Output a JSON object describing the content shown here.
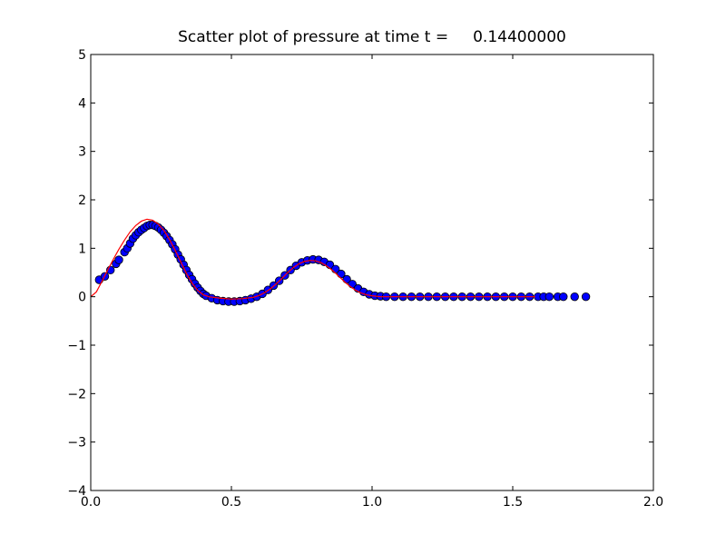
{
  "chart_data": {
    "type": "scatter",
    "title": "Scatter plot of pressure at time t =     0.14400000",
    "xlabel": "",
    "ylabel": "",
    "xlim": [
      0.0,
      2.0
    ],
    "ylim": [
      -4,
      5
    ],
    "x_ticks": [
      "0.0",
      "0.5",
      "1.0",
      "1.5",
      "2.0"
    ],
    "y_ticks": [
      "−4",
      "−3",
      "−2",
      "−1",
      "0",
      "1",
      "2",
      "3",
      "4",
      "5"
    ],
    "x_tick_values": [
      0.0,
      0.5,
      1.0,
      1.5,
      2.0
    ],
    "y_tick_values": [
      -4,
      -3,
      -2,
      -1,
      0,
      1,
      2,
      3,
      4,
      5
    ],
    "grid": false,
    "series": [
      {
        "kind": "scatter",
        "color": "#0000ff",
        "edgecolor": "#000000",
        "points": [
          [
            0.03,
            0.35
          ],
          [
            0.05,
            0.42
          ],
          [
            0.07,
            0.55
          ],
          [
            0.09,
            0.68
          ],
          [
            0.1,
            0.76
          ],
          [
            0.12,
            0.92
          ],
          [
            0.13,
            1.0
          ],
          [
            0.14,
            1.1
          ],
          [
            0.15,
            1.2
          ],
          [
            0.16,
            1.27
          ],
          [
            0.17,
            1.33
          ],
          [
            0.18,
            1.38
          ],
          [
            0.19,
            1.42
          ],
          [
            0.2,
            1.46
          ],
          [
            0.21,
            1.48
          ],
          [
            0.22,
            1.48
          ],
          [
            0.23,
            1.46
          ],
          [
            0.24,
            1.43
          ],
          [
            0.25,
            1.38
          ],
          [
            0.26,
            1.32
          ],
          [
            0.27,
            1.25
          ],
          [
            0.28,
            1.17
          ],
          [
            0.29,
            1.08
          ],
          [
            0.3,
            0.98
          ],
          [
            0.31,
            0.87
          ],
          [
            0.32,
            0.77
          ],
          [
            0.33,
            0.66
          ],
          [
            0.34,
            0.55
          ],
          [
            0.35,
            0.45
          ],
          [
            0.36,
            0.36
          ],
          [
            0.37,
            0.27
          ],
          [
            0.38,
            0.19
          ],
          [
            0.39,
            0.12
          ],
          [
            0.4,
            0.06
          ],
          [
            0.41,
            0.02
          ],
          [
            0.43,
            -0.03
          ],
          [
            0.45,
            -0.07
          ],
          [
            0.47,
            -0.09
          ],
          [
            0.49,
            -0.1
          ],
          [
            0.51,
            -0.1
          ],
          [
            0.53,
            -0.09
          ],
          [
            0.55,
            -0.07
          ],
          [
            0.57,
            -0.04
          ],
          [
            0.59,
            0.0
          ],
          [
            0.61,
            0.06
          ],
          [
            0.63,
            0.14
          ],
          [
            0.65,
            0.23
          ],
          [
            0.67,
            0.33
          ],
          [
            0.69,
            0.44
          ],
          [
            0.71,
            0.55
          ],
          [
            0.73,
            0.64
          ],
          [
            0.75,
            0.71
          ],
          [
            0.77,
            0.75
          ],
          [
            0.79,
            0.77
          ],
          [
            0.81,
            0.76
          ],
          [
            0.83,
            0.72
          ],
          [
            0.85,
            0.66
          ],
          [
            0.87,
            0.57
          ],
          [
            0.89,
            0.47
          ],
          [
            0.91,
            0.36
          ],
          [
            0.93,
            0.26
          ],
          [
            0.95,
            0.17
          ],
          [
            0.97,
            0.1
          ],
          [
            0.99,
            0.05
          ],
          [
            1.01,
            0.02
          ],
          [
            1.03,
            0.01
          ],
          [
            1.05,
            0.0
          ],
          [
            1.08,
            0.0
          ],
          [
            1.11,
            0.0
          ],
          [
            1.14,
            0.0
          ],
          [
            1.17,
            0.0
          ],
          [
            1.2,
            0.0
          ],
          [
            1.23,
            0.0
          ],
          [
            1.26,
            0.0
          ],
          [
            1.29,
            0.0
          ],
          [
            1.32,
            0.0
          ],
          [
            1.35,
            0.0
          ],
          [
            1.38,
            0.0
          ],
          [
            1.41,
            0.0
          ],
          [
            1.44,
            0.0
          ],
          [
            1.47,
            0.0
          ],
          [
            1.5,
            0.0
          ],
          [
            1.53,
            0.0
          ],
          [
            1.56,
            0.0
          ],
          [
            1.59,
            0.0
          ],
          [
            1.61,
            0.0
          ],
          [
            1.63,
            0.0
          ],
          [
            1.66,
            0.0
          ],
          [
            1.68,
            0.0
          ],
          [
            1.72,
            0.0
          ],
          [
            1.76,
            0.0
          ]
        ]
      },
      {
        "kind": "line",
        "color": "#ff0000",
        "points": [
          [
            0.0,
            0.0
          ],
          [
            0.02,
            0.1
          ],
          [
            0.04,
            0.32
          ],
          [
            0.06,
            0.55
          ],
          [
            0.08,
            0.77
          ],
          [
            0.1,
            0.98
          ],
          [
            0.12,
            1.17
          ],
          [
            0.14,
            1.34
          ],
          [
            0.16,
            1.47
          ],
          [
            0.18,
            1.56
          ],
          [
            0.2,
            1.6
          ],
          [
            0.22,
            1.58
          ],
          [
            0.24,
            1.5
          ],
          [
            0.26,
            1.37
          ],
          [
            0.28,
            1.18
          ],
          [
            0.3,
            0.96
          ],
          [
            0.32,
            0.72
          ],
          [
            0.34,
            0.48
          ],
          [
            0.36,
            0.28
          ],
          [
            0.38,
            0.13
          ],
          [
            0.4,
            0.04
          ],
          [
            0.42,
            0.0
          ],
          [
            0.46,
            -0.03
          ],
          [
            0.5,
            -0.05
          ],
          [
            0.54,
            -0.04
          ],
          [
            0.58,
            -0.01
          ],
          [
            0.6,
            0.03
          ],
          [
            0.62,
            0.09
          ],
          [
            0.64,
            0.17
          ],
          [
            0.66,
            0.27
          ],
          [
            0.68,
            0.38
          ],
          [
            0.7,
            0.5
          ],
          [
            0.72,
            0.6
          ],
          [
            0.74,
            0.68
          ],
          [
            0.76,
            0.73
          ],
          [
            0.78,
            0.75
          ],
          [
            0.8,
            0.74
          ],
          [
            0.82,
            0.7
          ],
          [
            0.84,
            0.63
          ],
          [
            0.86,
            0.54
          ],
          [
            0.88,
            0.43
          ],
          [
            0.9,
            0.32
          ],
          [
            0.92,
            0.22
          ],
          [
            0.94,
            0.14
          ],
          [
            0.96,
            0.08
          ],
          [
            0.98,
            0.04
          ],
          [
            1.0,
            0.02
          ],
          [
            1.03,
            0.0
          ],
          [
            1.1,
            0.0
          ],
          [
            1.3,
            0.0
          ],
          [
            1.5,
            0.0
          ],
          [
            1.58,
            0.0
          ]
        ]
      }
    ]
  }
}
